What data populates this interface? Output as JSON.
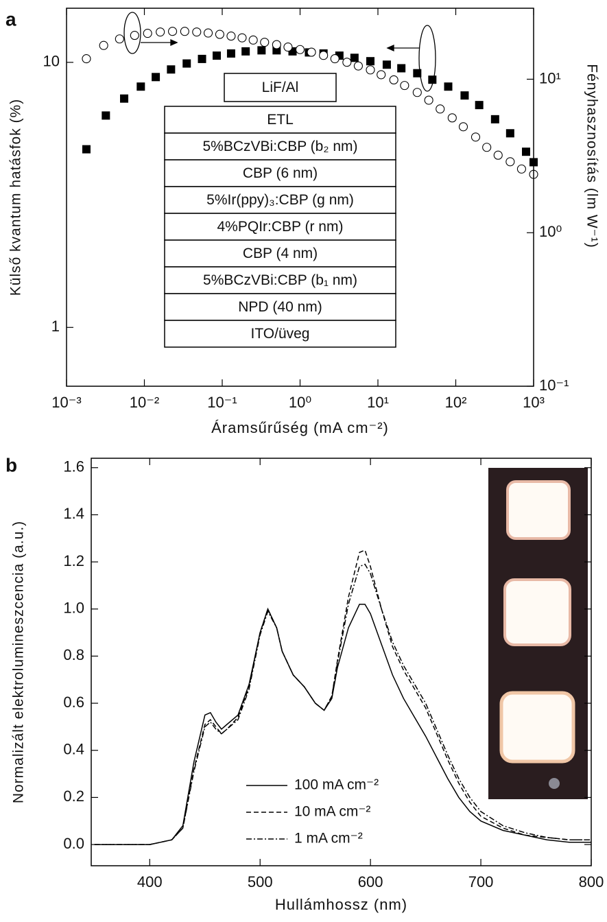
{
  "chart_data": [
    {
      "type": "scatter",
      "panel": "a",
      "xlabel": "Áramsűrűség (mA cm⁻²)",
      "ylabel": "Külső kvantum hatásfok (%)",
      "y2label": "Fényhasznosítás (lm W⁻¹)",
      "xscale": "log",
      "yscale": "log",
      "y2scale": "log",
      "xlim": [
        0.001,
        1000
      ],
      "ylim": [
        0.6,
        16
      ],
      "y2lim": [
        0.1,
        29
      ],
      "xticks": [
        {
          "value": 0.001,
          "label": "10⁻³"
        },
        {
          "value": 0.01,
          "label": "10⁻²"
        },
        {
          "value": 0.1,
          "label": "10⁻¹"
        },
        {
          "value": 1,
          "label": "10⁰"
        },
        {
          "value": 10,
          "label": "10¹"
        },
        {
          "value": 100,
          "label": "10²"
        },
        {
          "value": 1000,
          "label": "10³"
        }
      ],
      "yticks": [
        1,
        10
      ],
      "y2ticks": [
        {
          "value": 0.1,
          "label": "10⁻¹"
        },
        {
          "value": 1,
          "label": "10⁰"
        },
        {
          "value": 10,
          "label": "10¹"
        }
      ],
      "series": [
        {
          "marker": "square",
          "color": "#000000",
          "axis": "y",
          "x": [
            0.0018,
            0.0032,
            0.0055,
            0.009,
            0.014,
            0.022,
            0.035,
            0.055,
            0.085,
            0.13,
            0.2,
            0.32,
            0.5,
            0.8,
            1.3,
            2,
            3.2,
            5,
            8,
            13,
            20,
            32,
            50,
            80,
            130,
            200,
            320,
            500,
            800,
            1000
          ],
          "values": [
            4.7,
            6.3,
            7.3,
            8.1,
            8.8,
            9.4,
            9.9,
            10.3,
            10.6,
            10.8,
            11.0,
            11.1,
            11.1,
            11.0,
            10.9,
            10.8,
            10.6,
            10.4,
            10.1,
            9.8,
            9.5,
            9.1,
            8.6,
            8.1,
            7.5,
            6.9,
            6.1,
            5.4,
            4.6,
            4.2
          ]
        },
        {
          "marker": "circle",
          "color": "#000000",
          "axis": "y2",
          "x": [
            0.0018,
            0.003,
            0.0048,
            0.0075,
            0.011,
            0.016,
            0.023,
            0.033,
            0.047,
            0.066,
            0.093,
            0.13,
            0.18,
            0.25,
            0.35,
            0.5,
            0.7,
            1,
            1.4,
            2,
            2.8,
            4,
            5.6,
            8,
            11,
            16,
            22,
            32,
            45,
            63,
            90,
            125,
            180,
            250,
            350,
            500,
            700,
            1000
          ],
          "values": [
            13.6,
            16.6,
            18.3,
            19.3,
            19.9,
            20.3,
            20.5,
            20.5,
            20.3,
            20.0,
            19.6,
            19.1,
            18.6,
            18.0,
            17.4,
            16.8,
            16.2,
            15.6,
            15.0,
            14.3,
            13.6,
            12.9,
            12.2,
            11.5,
            10.7,
            9.9,
            9.1,
            8.2,
            7.3,
            6.4,
            5.6,
            4.9,
            4.2,
            3.6,
            3.2,
            2.9,
            2.6,
            2.4
          ]
        }
      ],
      "annotations": [
        "LiF/Al",
        "ETL",
        "5%BCzVBi:CBP (b₂ nm)",
        "CBP (6 nm)",
        "5%Ir(ppy)₃:CBP (g nm)",
        "4%PQIr:CBP (r nm)",
        "CBP (4 nm)",
        "5%BCzVBi:CBP (b₁ nm)",
        "NPD (40 nm)",
        "ITO/üveg"
      ]
    },
    {
      "type": "line",
      "panel": "b",
      "xlabel": "Hullámhossz (nm)",
      "ylabel": "Normalizált elektrolumineszcencia (a.u.)",
      "xlim": [
        347,
        800
      ],
      "ylim": [
        -0.09,
        1.64
      ],
      "xticks": [
        400,
        500,
        600,
        700,
        800
      ],
      "yticks": [
        {
          "value": 0,
          "label": "0.0"
        },
        0.2,
        0.4,
        0.6,
        0.8,
        {
          "value": 1,
          "label": "1.0"
        },
        1.2,
        1.4,
        1.6
      ],
      "legend": "lower center",
      "x": [
        350,
        380,
        400,
        410,
        420,
        430,
        440,
        450,
        455,
        460,
        465,
        470,
        480,
        490,
        500,
        507,
        515,
        520,
        530,
        540,
        550,
        558,
        565,
        570,
        580,
        590,
        595,
        600,
        610,
        620,
        630,
        640,
        650,
        660,
        670,
        680,
        690,
        700,
        720,
        740,
        760,
        780,
        800
      ],
      "series": [
        {
          "name": "100 mA cm⁻²",
          "color": "#000000",
          "dash": "none",
          "values": [
            0,
            0,
            0,
            0.01,
            0.02,
            0.08,
            0.35,
            0.55,
            0.56,
            0.52,
            0.49,
            0.51,
            0.55,
            0.68,
            0.9,
            1.0,
            0.92,
            0.82,
            0.72,
            0.67,
            0.6,
            0.57,
            0.62,
            0.75,
            0.92,
            1.02,
            1.02,
            0.98,
            0.85,
            0.72,
            0.62,
            0.54,
            0.46,
            0.37,
            0.28,
            0.2,
            0.14,
            0.1,
            0.06,
            0.04,
            0.02,
            0.01,
            0.01
          ]
        },
        {
          "name": "10 mA cm⁻²",
          "color": "#000000",
          "dash": "7 4",
          "values": [
            0,
            0,
            0,
            0.01,
            0.02,
            0.07,
            0.32,
            0.51,
            0.53,
            0.5,
            0.47,
            0.49,
            0.54,
            0.67,
            0.9,
            1.0,
            0.92,
            0.82,
            0.72,
            0.67,
            0.6,
            0.57,
            0.63,
            0.78,
            1.05,
            1.24,
            1.25,
            1.18,
            1.0,
            0.84,
            0.74,
            0.66,
            0.58,
            0.47,
            0.36,
            0.26,
            0.18,
            0.12,
            0.07,
            0.04,
            0.03,
            0.02,
            0.02
          ]
        },
        {
          "name": "1 mA cm⁻²",
          "color": "#000000",
          "dash": "8 3 2 3",
          "values": [
            0,
            0,
            0,
            0.01,
            0.02,
            0.07,
            0.31,
            0.5,
            0.52,
            0.49,
            0.47,
            0.49,
            0.53,
            0.66,
            0.89,
            0.99,
            0.92,
            0.82,
            0.72,
            0.67,
            0.6,
            0.57,
            0.63,
            0.77,
            1.02,
            1.18,
            1.19,
            1.15,
            1.0,
            0.86,
            0.76,
            0.68,
            0.6,
            0.49,
            0.38,
            0.28,
            0.2,
            0.14,
            0.08,
            0.05,
            0.03,
            0.02,
            0.02
          ]
        }
      ]
    }
  ]
}
